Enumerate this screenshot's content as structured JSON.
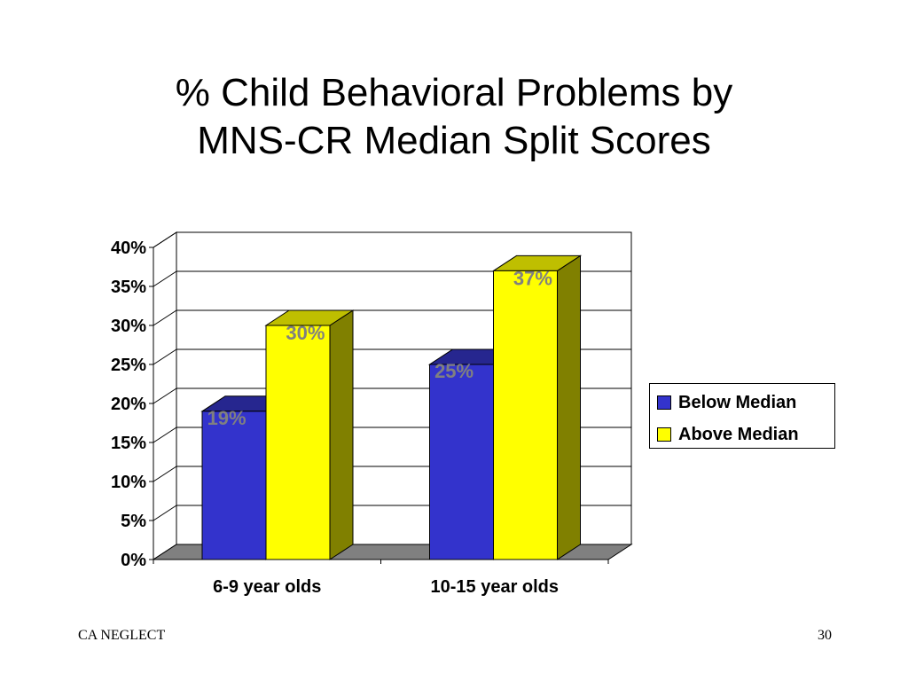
{
  "slide": {
    "title_line1": "% Child Behavioral Problems by",
    "title_line2": "MNS-CR Median Split Scores",
    "footer_left": "CA NEGLECT",
    "footer_right": "30"
  },
  "chart_data": {
    "type": "bar",
    "title": "% Child Behavioral Problems by MNS-CR Median Split Scores",
    "categories": [
      "6-9 year olds",
      "10-15 year olds"
    ],
    "series": [
      {
        "name": "Below Median",
        "values": [
          19,
          25
        ],
        "labels": [
          "19%",
          "25%"
        ],
        "color": "#3333cc",
        "side_color": "#000080",
        "top_color": "#26268f"
      },
      {
        "name": "Above Median",
        "values": [
          30,
          37
        ],
        "labels": [
          "30%",
          "37%"
        ],
        "color": "#ffff00",
        "side_color": "#808000",
        "top_color": "#bfbf00"
      }
    ],
    "ylim": [
      0,
      40
    ],
    "yticks": [
      0,
      5,
      10,
      15,
      20,
      25,
      30,
      35,
      40
    ],
    "ytick_labels": [
      "0%",
      "5%",
      "10%",
      "15%",
      "20%",
      "25%",
      "30%",
      "35%",
      "40%"
    ],
    "xlabel": "",
    "ylabel": "",
    "grid": true,
    "legend": "right",
    "style": "3d-clustered-column"
  }
}
